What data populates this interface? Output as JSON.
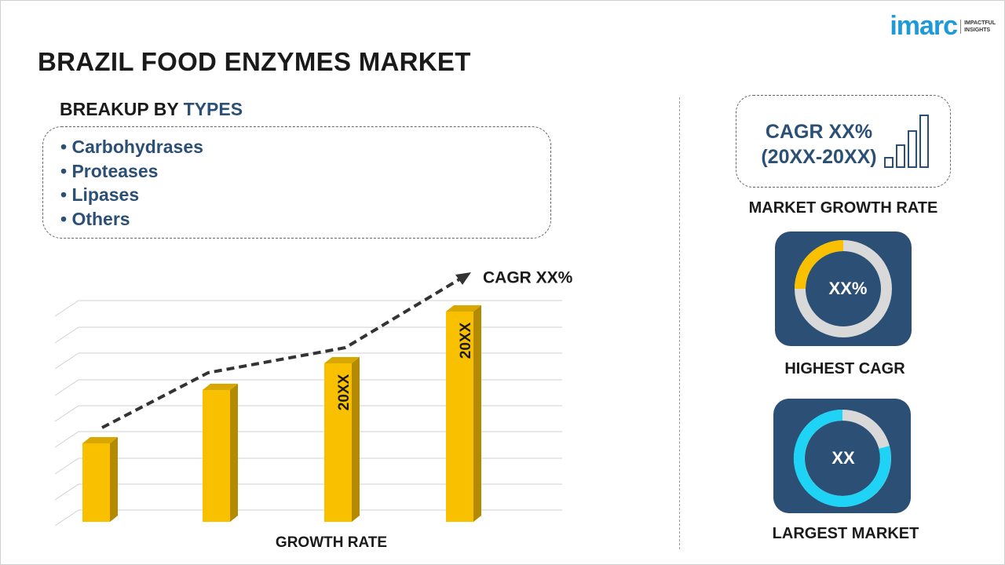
{
  "header": {
    "title": "BRAZIL FOOD ENZYMES MARKET",
    "logo": {
      "brand": "imarc",
      "tagline": [
        "IMPACTFUL",
        "INSIGHTS"
      ]
    }
  },
  "breakup": {
    "heading": "BREAKUP BY",
    "heading_highlight": "TYPES",
    "items": [
      "Carbohydrases",
      "Proteases",
      "Lipases",
      "Others"
    ]
  },
  "growth_chart": {
    "trend_label": "CAGR XX%",
    "bar_labels": [
      "20XX",
      "20XX"
    ],
    "axis_label": "GROWTH RATE"
  },
  "sidebar": {
    "cagr_box": {
      "lines": [
        "CAGR XX%",
        "(20XX-20XX)"
      ],
      "caption": "MARKET GROWTH RATE"
    },
    "highest_cagr": {
      "value": "XX%",
      "caption": "HIGHEST CAGR"
    },
    "largest_market": {
      "value": "XX",
      "caption": "LARGEST MARKET"
    }
  }
}
